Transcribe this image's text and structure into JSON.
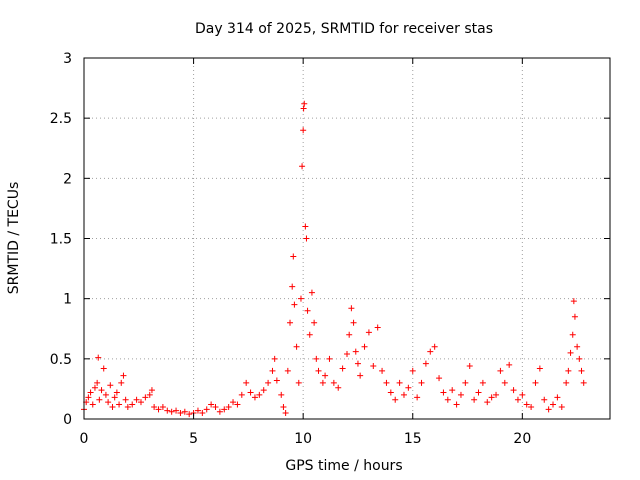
{
  "chart_data": {
    "type": "scatter",
    "title": "Day 314 of 2025, SRMTID for receiver stas",
    "xlabel": "GPS time / hours",
    "ylabel": "SRMTID / TECUs",
    "xlim": [
      0,
      24
    ],
    "ylim": [
      0,
      3
    ],
    "xticks": [
      0,
      5,
      10,
      15,
      20
    ],
    "yticks": [
      0,
      0.5,
      1,
      1.5,
      2,
      2.5,
      3
    ],
    "xtick_labels": [
      "0",
      "5",
      "10",
      "15",
      "20"
    ],
    "ytick_labels": [
      "0",
      "0.5",
      "1",
      "1.5",
      "2",
      "2.5",
      "3"
    ],
    "grid": true,
    "marker": "plus",
    "color": "#ff0000",
    "series": [
      {
        "name": "stas",
        "points": [
          [
            0.0,
            0.08
          ],
          [
            0.1,
            0.14
          ],
          [
            0.2,
            0.18
          ],
          [
            0.3,
            0.22
          ],
          [
            0.4,
            0.12
          ],
          [
            0.5,
            0.26
          ],
          [
            0.6,
            0.3
          ],
          [
            0.65,
            0.51
          ],
          [
            0.7,
            0.16
          ],
          [
            0.8,
            0.24
          ],
          [
            0.9,
            0.42
          ],
          [
            1.0,
            0.2
          ],
          [
            1.1,
            0.14
          ],
          [
            1.2,
            0.28
          ],
          [
            1.3,
            0.1
          ],
          [
            1.4,
            0.18
          ],
          [
            1.5,
            0.22
          ],
          [
            1.6,
            0.12
          ],
          [
            1.7,
            0.3
          ],
          [
            1.8,
            0.36
          ],
          [
            1.9,
            0.16
          ],
          [
            2.0,
            0.1
          ],
          [
            2.2,
            0.12
          ],
          [
            2.4,
            0.16
          ],
          [
            2.6,
            0.14
          ],
          [
            2.8,
            0.18
          ],
          [
            3.0,
            0.2
          ],
          [
            3.1,
            0.24
          ],
          [
            3.2,
            0.1
          ],
          [
            3.4,
            0.08
          ],
          [
            3.6,
            0.1
          ],
          [
            3.8,
            0.07
          ],
          [
            4.0,
            0.06
          ],
          [
            4.2,
            0.07
          ],
          [
            4.4,
            0.05
          ],
          [
            4.6,
            0.06
          ],
          [
            4.8,
            0.04
          ],
          [
            5.0,
            0.05
          ],
          [
            5.2,
            0.07
          ],
          [
            5.4,
            0.05
          ],
          [
            5.6,
            0.08
          ],
          [
            5.8,
            0.12
          ],
          [
            6.0,
            0.1
          ],
          [
            6.2,
            0.06
          ],
          [
            6.4,
            0.08
          ],
          [
            6.6,
            0.1
          ],
          [
            6.8,
            0.14
          ],
          [
            7.0,
            0.12
          ],
          [
            7.2,
            0.2
          ],
          [
            7.4,
            0.3
          ],
          [
            7.6,
            0.22
          ],
          [
            7.8,
            0.18
          ],
          [
            8.0,
            0.2
          ],
          [
            8.2,
            0.24
          ],
          [
            8.4,
            0.3
          ],
          [
            8.6,
            0.4
          ],
          [
            8.7,
            0.5
          ],
          [
            8.8,
            0.32
          ],
          [
            9.0,
            0.2
          ],
          [
            9.1,
            0.1
          ],
          [
            9.2,
            0.05
          ],
          [
            9.3,
            0.4
          ],
          [
            9.4,
            0.8
          ],
          [
            9.5,
            1.1
          ],
          [
            9.55,
            1.35
          ],
          [
            9.6,
            0.95
          ],
          [
            9.7,
            0.6
          ],
          [
            9.8,
            0.3
          ],
          [
            9.9,
            1.0
          ],
          [
            9.95,
            2.1
          ],
          [
            10.0,
            2.4
          ],
          [
            10.02,
            2.58
          ],
          [
            10.05,
            2.62
          ],
          [
            10.1,
            1.6
          ],
          [
            10.15,
            1.5
          ],
          [
            10.2,
            0.9
          ],
          [
            10.3,
            0.7
          ],
          [
            10.4,
            1.05
          ],
          [
            10.5,
            0.8
          ],
          [
            10.6,
            0.5
          ],
          [
            10.7,
            0.4
          ],
          [
            10.9,
            0.3
          ],
          [
            11.0,
            0.36
          ],
          [
            11.2,
            0.5
          ],
          [
            11.4,
            0.3
          ],
          [
            11.6,
            0.26
          ],
          [
            11.8,
            0.42
          ],
          [
            12.0,
            0.54
          ],
          [
            12.1,
            0.7
          ],
          [
            12.2,
            0.92
          ],
          [
            12.3,
            0.8
          ],
          [
            12.4,
            0.56
          ],
          [
            12.5,
            0.46
          ],
          [
            12.6,
            0.36
          ],
          [
            12.8,
            0.6
          ],
          [
            13.0,
            0.72
          ],
          [
            13.2,
            0.44
          ],
          [
            13.4,
            0.76
          ],
          [
            13.6,
            0.4
          ],
          [
            13.8,
            0.3
          ],
          [
            14.0,
            0.22
          ],
          [
            14.2,
            0.16
          ],
          [
            14.4,
            0.3
          ],
          [
            14.6,
            0.2
          ],
          [
            14.8,
            0.26
          ],
          [
            15.0,
            0.4
          ],
          [
            15.2,
            0.18
          ],
          [
            15.4,
            0.3
          ],
          [
            15.6,
            0.46
          ],
          [
            15.8,
            0.56
          ],
          [
            16.0,
            0.6
          ],
          [
            16.2,
            0.34
          ],
          [
            16.4,
            0.22
          ],
          [
            16.6,
            0.16
          ],
          [
            16.8,
            0.24
          ],
          [
            17.0,
            0.12
          ],
          [
            17.2,
            0.2
          ],
          [
            17.4,
            0.3
          ],
          [
            17.6,
            0.44
          ],
          [
            17.8,
            0.16
          ],
          [
            18.0,
            0.22
          ],
          [
            18.2,
            0.3
          ],
          [
            18.4,
            0.14
          ],
          [
            18.6,
            0.18
          ],
          [
            18.8,
            0.2
          ],
          [
            19.0,
            0.4
          ],
          [
            19.2,
            0.3
          ],
          [
            19.4,
            0.45
          ],
          [
            19.6,
            0.24
          ],
          [
            19.8,
            0.16
          ],
          [
            20.0,
            0.2
          ],
          [
            20.2,
            0.12
          ],
          [
            20.4,
            0.1
          ],
          [
            20.6,
            0.3
          ],
          [
            20.8,
            0.42
          ],
          [
            21.0,
            0.16
          ],
          [
            21.2,
            0.08
          ],
          [
            21.4,
            0.12
          ],
          [
            21.6,
            0.18
          ],
          [
            21.8,
            0.1
          ],
          [
            22.0,
            0.3
          ],
          [
            22.1,
            0.4
          ],
          [
            22.2,
            0.55
          ],
          [
            22.3,
            0.7
          ],
          [
            22.35,
            0.98
          ],
          [
            22.4,
            0.85
          ],
          [
            22.5,
            0.6
          ],
          [
            22.6,
            0.5
          ],
          [
            22.7,
            0.4
          ],
          [
            22.8,
            0.3
          ]
        ]
      }
    ]
  }
}
